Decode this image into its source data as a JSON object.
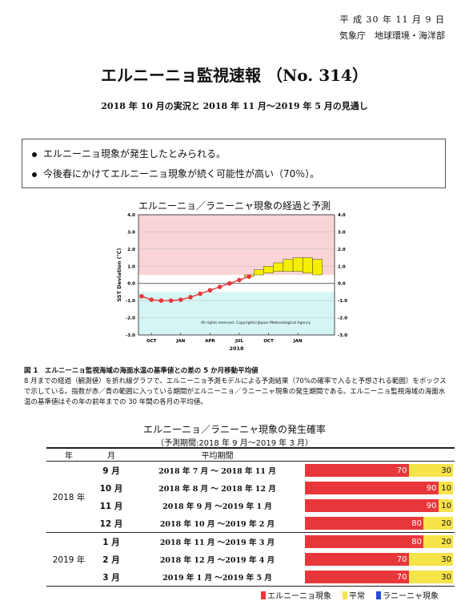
{
  "header": {
    "date": "平 成 30 年 11 月 9 日",
    "agency": "気象庁　地球環境・海洋部"
  },
  "title": "エルニーニョ監視速報 （No. 314）",
  "subtitle": "2018 年 10 月の実況と 2018 年 11 月～2019 年 5 月の見通し",
  "summary": [
    "エルニーニョ現象が発生したとみられる。",
    "今後春にかけてエルニーニョ現象が続く可能性が高い（70％）。"
  ],
  "figure": {
    "title": "エルニーニョ／ラニーニャ現象の経過と予測",
    "caption_title": "図 1　エルニーニョ監視海域の海面水温の基準値との差の 5 か月移動平均値",
    "caption_body": "8 月までの経過（観測値）を折れ線グラフで、エルニーニョ予測モデルによる予測結果（70%の確率で入ると予想される範囲）をボックスで示している。指数が赤／青の範囲に入っている期間がエルニーニョ／ラニーニャ現象の発生期間である。エルニーニョ監視海域の海面水温の基準値はその年の前年までの 30 年間の各月の平均値。"
  },
  "chart_data": {
    "type": "line",
    "title": "",
    "xlabel": "2018",
    "ylabel": "SST Deviation (℃)",
    "ylim": [
      -3.0,
      4.0
    ],
    "yticks": [
      "4.0",
      "3.0",
      "2.0",
      "1.0",
      "0.0",
      "-1.0",
      "-2.0",
      "-3.0"
    ],
    "xticks": [
      "OCT",
      "JAN",
      "APR",
      "JUL",
      "OCT",
      "JAN"
    ],
    "copyright": "All rights reserved. Copyright(c)Japan Meteorological Agency",
    "elnino_threshold": 0.5,
    "lanina_threshold": -0.5,
    "observed": {
      "x": [
        "2017-09",
        "2017-10",
        "2017-11",
        "2017-12",
        "2018-01",
        "2018-02",
        "2018-03",
        "2018-04",
        "2018-05",
        "2018-06",
        "2018-07",
        "2018-08"
      ],
      "values": [
        -0.75,
        -0.95,
        -1.0,
        -1.0,
        -0.95,
        -0.8,
        -0.6,
        -0.4,
        -0.2,
        0.0,
        0.2,
        0.4
      ]
    },
    "forecast_range": {
      "x": [
        "2018-08",
        "2018-09",
        "2018-10",
        "2018-11",
        "2018-12",
        "2019-01",
        "2019-02",
        "2019-03"
      ],
      "low": [
        0.4,
        0.5,
        0.6,
        0.7,
        0.7,
        0.7,
        0.6,
        0.5
      ],
      "high": [
        0.5,
        0.8,
        1.0,
        1.2,
        1.4,
        1.5,
        1.5,
        1.4
      ]
    }
  },
  "probability": {
    "title": "エルニーニョ／ラニーニャ現象の発生確率",
    "subtitle": "（予測期間:2018 年 9 月～2019 年 3 月）",
    "headers": {
      "year": "年",
      "month": "月",
      "period": "平均期間"
    },
    "rows": [
      {
        "year": "2018 年",
        "month": "9 月",
        "period": "2018 年  7 月 ～ 2018 年 11 月",
        "elnino": 70,
        "normal": 30,
        "lanina": 0
      },
      {
        "year": "",
        "month": "10 月",
        "period": "2018 年  8 月 ～ 2018 年 12 月",
        "elnino": 90,
        "normal": 10,
        "lanina": 0
      },
      {
        "year": "",
        "month": "11 月",
        "period": "2018 年  9 月 ～2019 年  1 月",
        "elnino": 90,
        "normal": 10,
        "lanina": 0
      },
      {
        "year": "",
        "month": "12 月",
        "period": "2018 年 10 月 ～2019 年  2 月",
        "elnino": 80,
        "normal": 20,
        "lanina": 0
      },
      {
        "year": "2019 年",
        "month": "1 月",
        "period": "2018 年 11 月 ～2019 年  3 月",
        "elnino": 80,
        "normal": 20,
        "lanina": 0
      },
      {
        "year": "",
        "month": "2 月",
        "period": "2018 年 12 月 ～2019 年  4 月",
        "elnino": 70,
        "normal": 30,
        "lanina": 0
      },
      {
        "year": "",
        "month": "3 月",
        "period": "2019 年  1 月 ～2019 年  5 月",
        "elnino": 70,
        "normal": 30,
        "lanina": 0
      }
    ],
    "legend": {
      "elnino": "エルニーニョ現象",
      "normal": "平常",
      "lanina": "ラニーニャ現象"
    },
    "colors": {
      "elnino": "#e8373a",
      "normal": "#f7e34a",
      "lanina": "#2a4dd8"
    }
  }
}
